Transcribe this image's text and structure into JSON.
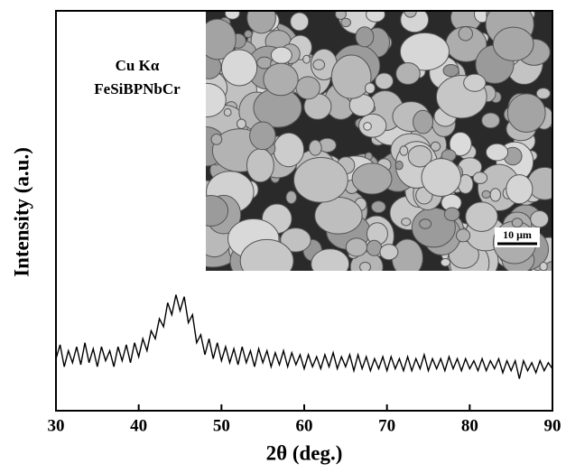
{
  "chart_data": {
    "type": "line",
    "xlabel": "2θ (deg.)",
    "ylabel": "Intensity (a.u.)",
    "annotations": [
      "Cu Kα",
      "FeSiBPNbCr"
    ],
    "scale_bar": "10 μm",
    "color": "#000000",
    "xlim": [
      30,
      90
    ],
    "xticks": [
      30,
      40,
      50,
      60,
      70,
      80,
      90
    ],
    "ylim": [
      0,
      100
    ],
    "x": [
      30,
      30.5,
      31,
      31.5,
      32,
      32.5,
      33,
      33.5,
      34,
      34.5,
      35,
      35.5,
      36,
      36.5,
      37,
      37.5,
      38,
      38.5,
      39,
      39.5,
      40,
      40.5,
      41,
      41.5,
      42,
      42.5,
      43,
      43.5,
      44,
      44.5,
      45,
      45.5,
      46,
      46.5,
      47,
      47.5,
      48,
      48.5,
      49,
      49.5,
      50,
      50.5,
      51,
      51.5,
      52,
      52.5,
      53,
      53.5,
      54,
      54.5,
      55,
      55.5,
      56,
      56.5,
      57,
      57.5,
      58,
      58.5,
      59,
      59.5,
      60,
      60.5,
      61,
      61.5,
      62,
      62.5,
      63,
      63.5,
      64,
      64.5,
      65,
      65.5,
      66,
      66.5,
      67,
      67.5,
      68,
      68.5,
      69,
      69.5,
      70,
      70.5,
      71,
      71.5,
      72,
      72.5,
      73,
      73.5,
      74,
      74.5,
      75,
      75.5,
      76,
      76.5,
      77,
      77.5,
      78,
      78.5,
      79,
      79.5,
      80,
      80.5,
      81,
      81.5,
      82,
      82.5,
      83,
      83.5,
      84,
      84.5,
      85,
      85.5,
      86,
      86.5,
      87,
      87.5,
      88,
      88.5,
      89,
      89.5,
      90
    ],
    "values": [
      13,
      16.5,
      11,
      15,
      12,
      16,
      11.5,
      17,
      12,
      15.5,
      11,
      16,
      12.5,
      15,
      11,
      16,
      12.5,
      16.5,
      12,
      17,
      13.5,
      18,
      15,
      20,
      18,
      23,
      21,
      27,
      24,
      29,
      25,
      28.5,
      22,
      24,
      17,
      19,
      14,
      18,
      13,
      17,
      12.5,
      16,
      12,
      15.5,
      11.5,
      16,
      12,
      15,
      11,
      15.5,
      12,
      15,
      11,
      14.5,
      11.5,
      15,
      11,
      14.5,
      11.5,
      14,
      10.5,
      14,
      11,
      13.5,
      10.5,
      14,
      11,
      14.5,
      10.5,
      13.5,
      11,
      14,
      10,
      14,
      10.5,
      13.5,
      10,
      13,
      10.5,
      13.5,
      10,
      13.5,
      10.5,
      13,
      10,
      13.5,
      10,
      13,
      10.5,
      14,
      10,
      13,
      10.5,
      13,
      10,
      13.5,
      10.5,
      13,
      10,
      13,
      10.5,
      12.5,
      10,
      13,
      10,
      12.5,
      10.5,
      13,
      9.5,
      12.5,
      10,
      12.5,
      8,
      12.5,
      10,
      12,
      9.5,
      12.5,
      10,
      12,
      10.5
    ]
  }
}
